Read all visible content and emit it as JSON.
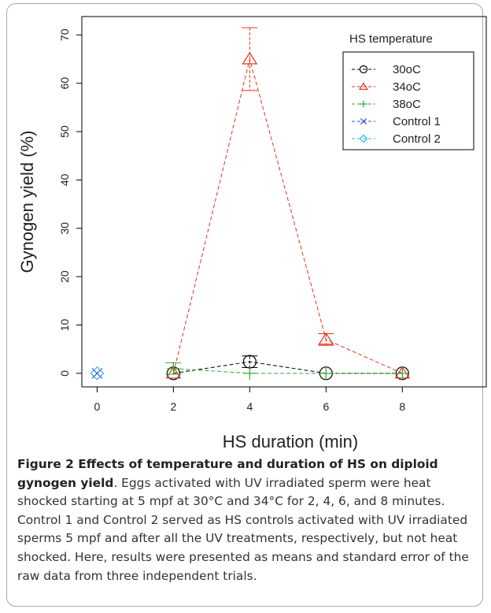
{
  "chart_data": {
    "type": "line",
    "xlabel": "HS duration (min)",
    "ylabel": "Gynogen yield (%)",
    "x_ticks": [
      0,
      2,
      4,
      6,
      8
    ],
    "y_ticks": [
      0,
      10,
      20,
      30,
      40,
      50,
      60,
      70
    ],
    "xlim": [
      -0.4,
      10.2
    ],
    "ylim": [
      -2.8,
      73.8
    ],
    "legend_title": "HS temperature",
    "legend_position": "top-right",
    "series": [
      {
        "name": "30oC",
        "color": "#000000",
        "marker": "circle",
        "x": [
          2,
          4,
          6,
          8
        ],
        "y": [
          0,
          2.4,
          0,
          0
        ],
        "err": [
          0,
          1.2,
          0,
          0
        ]
      },
      {
        "name": "34oC",
        "color": "#e8331f",
        "marker": "triangle",
        "x": [
          2,
          4,
          6,
          8
        ],
        "y": [
          0,
          65,
          7,
          0
        ],
        "err": [
          0,
          6.5,
          1.2,
          0
        ]
      },
      {
        "name": "38oC",
        "color": "#2eaa2e",
        "marker": "plus",
        "x": [
          2,
          4,
          6,
          8
        ],
        "y": [
          1,
          0,
          0,
          0
        ],
        "err": [
          1.2,
          0,
          0,
          0
        ]
      },
      {
        "name": "Control 1",
        "color": "#3b4fd0",
        "marker": "cross",
        "x": [
          0
        ],
        "y": [
          0
        ],
        "err": [
          0
        ]
      },
      {
        "name": "Control 2",
        "color": "#28b8e8",
        "marker": "diamond",
        "x": [
          0
        ],
        "y": [
          0
        ],
        "err": [
          0
        ]
      }
    ]
  },
  "caption": {
    "label": "Figure 2 Effects of temperature and duration of HS on diploid gynogen yield",
    "text": ". Eggs activated with UV irradiated sperm were heat shocked starting at 5 mpf at 30°C and 34°C for 2, 4, 6, and 8 minutes. Control 1 and Control 2 served as HS controls activated with UV irradiated sperms 5 mpf and after all the UV treatments, respectively, but not heat shocked. Here, results were presented as means and standard error of the raw data from three independent trials."
  }
}
